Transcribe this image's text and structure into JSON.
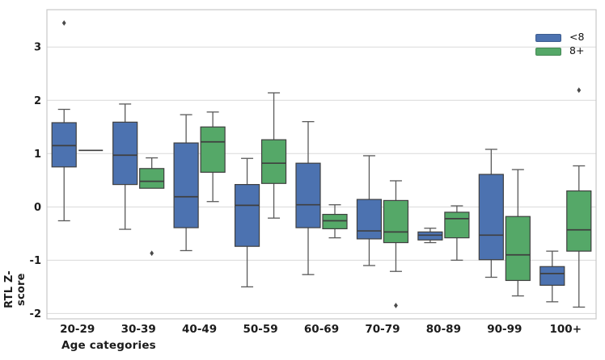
{
  "figure": {
    "background": "#ffffff"
  },
  "chart_data": {
    "type": "boxplot",
    "title": "",
    "xlabel": "Age categories",
    "ylabel": "RTL Z-score",
    "categories": [
      "20-29",
      "30-39",
      "40-49",
      "50-59",
      "60-69",
      "70-79",
      "80-89",
      "90-99",
      "100+"
    ],
    "y_ticks": [
      3,
      2,
      1,
      0,
      -1,
      -2
    ],
    "ylim": [
      -2.1,
      3.7
    ],
    "grid": "horizontal-only",
    "legend_position": "upper-right",
    "colors": {
      "grid": "#d9d9d9",
      "spine": "#c8c8c8",
      "whisker": "#5a5a5a",
      "box_edge": "#3f3f3f",
      "outlier": "#4a4a4a",
      "tick_text": "#1c1c1c"
    },
    "series": [
      {
        "name": "<8",
        "color": "#4C72B0",
        "boxes": [
          {
            "category": "20-29",
            "whisker_low": -0.26,
            "q1": 0.75,
            "median": 1.15,
            "q3": 1.58,
            "whisker_high": 1.83,
            "outliers": [
              3.45
            ]
          },
          {
            "category": "30-39",
            "whisker_low": -0.42,
            "q1": 0.42,
            "median": 0.97,
            "q3": 1.59,
            "whisker_high": 1.93,
            "outliers": []
          },
          {
            "category": "40-49",
            "whisker_low": -0.82,
            "q1": -0.39,
            "median": 0.19,
            "q3": 1.2,
            "whisker_high": 1.73,
            "outliers": []
          },
          {
            "category": "50-59",
            "whisker_low": -1.5,
            "q1": -0.74,
            "median": 0.03,
            "q3": 0.42,
            "whisker_high": 0.91,
            "outliers": []
          },
          {
            "category": "60-69",
            "whisker_low": -1.27,
            "q1": -0.39,
            "median": 0.04,
            "q3": 0.82,
            "whisker_high": 1.6,
            "outliers": []
          },
          {
            "category": "70-79",
            "whisker_low": -1.1,
            "q1": -0.6,
            "median": -0.45,
            "q3": 0.14,
            "whisker_high": 0.96,
            "outliers": []
          },
          {
            "category": "80-89",
            "whisker_low": -0.67,
            "q1": -0.62,
            "median": -0.53,
            "q3": -0.47,
            "whisker_high": -0.4,
            "outliers": []
          },
          {
            "category": "90-99",
            "whisker_low": -1.32,
            "q1": -0.99,
            "median": -0.53,
            "q3": 0.61,
            "whisker_high": 1.08,
            "outliers": []
          },
          {
            "category": "100+",
            "whisker_low": -1.78,
            "q1": -1.47,
            "median": -1.25,
            "q3": -1.12,
            "whisker_high": -0.83,
            "outliers": []
          }
        ]
      },
      {
        "name": "8+",
        "color": "#55A868",
        "boxes": [
          {
            "category": "20-29",
            "whisker_low": 1.06,
            "q1": 1.06,
            "median": 1.06,
            "q3": 1.06,
            "whisker_high": 1.06,
            "outliers": []
          },
          {
            "category": "30-39",
            "whisker_low": 0.35,
            "q1": 0.35,
            "median": 0.48,
            "q3": 0.72,
            "whisker_high": 0.92,
            "outliers": [
              -0.87
            ]
          },
          {
            "category": "40-49",
            "whisker_low": 0.1,
            "q1": 0.65,
            "median": 1.22,
            "q3": 1.5,
            "whisker_high": 1.78,
            "outliers": []
          },
          {
            "category": "50-59",
            "whisker_low": -0.21,
            "q1": 0.44,
            "median": 0.82,
            "q3": 1.26,
            "whisker_high": 2.14,
            "outliers": []
          },
          {
            "category": "60-69",
            "whisker_low": -0.58,
            "q1": -0.41,
            "median": -0.26,
            "q3": -0.14,
            "whisker_high": 0.04,
            "outliers": []
          },
          {
            "category": "70-79",
            "whisker_low": -1.21,
            "q1": -0.67,
            "median": -0.47,
            "q3": 0.12,
            "whisker_high": 0.49,
            "outliers": [
              -1.85
            ]
          },
          {
            "category": "80-89",
            "whisker_low": -1.0,
            "q1": -0.58,
            "median": -0.22,
            "q3": -0.1,
            "whisker_high": 0.02,
            "outliers": []
          },
          {
            "category": "90-99",
            "whisker_low": -1.67,
            "q1": -1.38,
            "median": -0.9,
            "q3": -0.18,
            "whisker_high": 0.7,
            "outliers": []
          },
          {
            "category": "100+",
            "whisker_low": -1.88,
            "q1": -0.83,
            "median": -0.43,
            "q3": 0.3,
            "whisker_high": 0.77,
            "outliers": [
              2.19
            ]
          }
        ]
      }
    ]
  }
}
